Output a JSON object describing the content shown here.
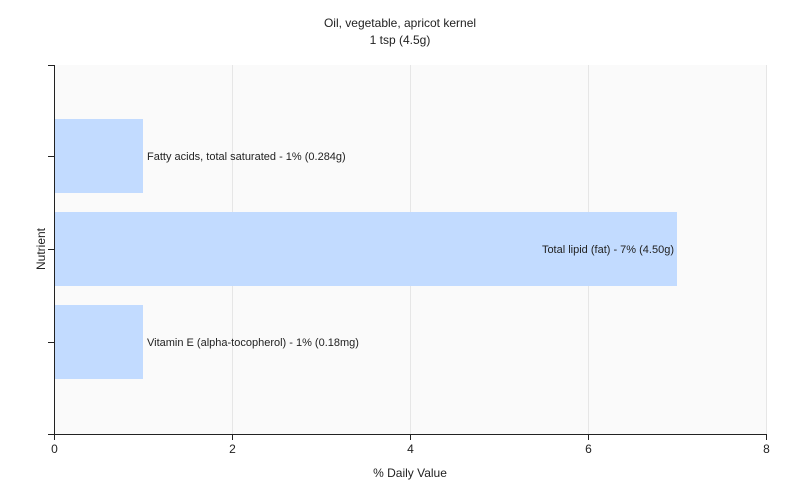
{
  "chart_data": {
    "type": "bar",
    "orientation": "horizontal",
    "title": "Oil, vegetable, apricot kernel",
    "subtitle": "1 tsp (4.5g)",
    "xlabel": "% Daily Value",
    "ylabel": "Nutrient",
    "xlim": [
      0,
      8
    ],
    "xticks": [
      "0",
      "2",
      "4",
      "6",
      "8"
    ],
    "grid": true,
    "categories": [
      "Fatty acids, total saturated",
      "Total lipid (fat)",
      "Vitamin E (alpha-tocopherol)"
    ],
    "values": [
      1,
      7,
      1
    ],
    "bar_labels": [
      "Fatty acids, total saturated - 1% (0.284g)",
      "Total lipid (fat) - 7% (4.50g)",
      "Vitamin E (alpha-tocopherol) - 1% (0.18mg)"
    ],
    "colors": {
      "bar": "#c2dbff",
      "plot_background": "#fafafa",
      "grid": "#e6e6e6",
      "axis": "#222222"
    }
  }
}
